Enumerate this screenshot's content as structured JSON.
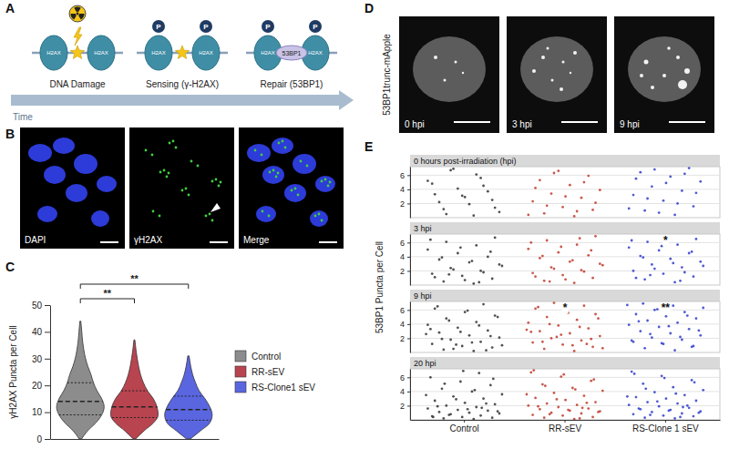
{
  "panel_labels": [
    "A",
    "B",
    "C",
    "D",
    "E"
  ],
  "diagram": {
    "stages": [
      "DNA Damage",
      "Sensing (γ-H2AX)",
      "Repair (53BP1)"
    ],
    "histone": "H2AX",
    "phospho": "P",
    "repair_protein": "53BP1",
    "time_label": "Time"
  },
  "micrographs_B": {
    "channels": [
      "DAPI",
      "γH2AX",
      "Merge"
    ]
  },
  "micrographs_D": {
    "channel_label": "53BP1trunc-mApple",
    "timepoints": [
      "0 hpi",
      "3 hpi",
      "9 hpi"
    ]
  },
  "chart_data": [
    {
      "type": "violin",
      "y_label": "γH2AX Puncta per Cell",
      "ylim": [
        0,
        50
      ],
      "yticks": [
        0,
        10,
        20,
        30,
        40,
        50
      ],
      "tick_labels": "y",
      "legend": "right",
      "series": [
        {
          "name": "Control",
          "color": "#8c8c8c",
          "median": 14,
          "q1": 9,
          "q3": 21,
          "density_y": [
            0,
            3,
            6,
            9,
            12,
            15,
            18,
            21,
            24,
            27,
            30,
            33,
            36,
            40,
            44
          ],
          "density": [
            0.05,
            0.3,
            0.65,
            0.9,
            1.0,
            0.9,
            0.7,
            0.55,
            0.45,
            0.32,
            0.22,
            0.15,
            0.1,
            0.06,
            0.02
          ]
        },
        {
          "name": "RR-sEV",
          "color": "#b8444f",
          "median": 12,
          "q1": 8,
          "q3": 18,
          "density_y": [
            0,
            3,
            6,
            9,
            12,
            15,
            18,
            21,
            24,
            27,
            30,
            33,
            37
          ],
          "density": [
            0.05,
            0.4,
            0.8,
            1.0,
            0.95,
            0.8,
            0.55,
            0.38,
            0.26,
            0.18,
            0.12,
            0.07,
            0.02
          ]
        },
        {
          "name": "RS-Clone1 sEV",
          "color": "#5a66e0",
          "median": 11,
          "q1": 7,
          "q3": 16,
          "density_y": [
            0,
            3,
            6,
            9,
            12,
            15,
            18,
            21,
            24,
            27,
            31
          ],
          "density": [
            0.08,
            0.5,
            0.9,
            1.0,
            0.9,
            0.7,
            0.45,
            0.3,
            0.18,
            0.1,
            0.03
          ]
        }
      ],
      "comparisons": [
        {
          "from": 0,
          "to": 1,
          "label": "**"
        },
        {
          "from": 0,
          "to": 2,
          "label": "**"
        }
      ]
    },
    {
      "type": "strip",
      "y_label": "53BP1 Puncta per Cell",
      "categories": [
        "Control",
        "RR-sEV",
        "RS-Clone 1 sEV"
      ],
      "colors": [
        "#333333",
        "#c0392b",
        "#2f3dc9"
      ],
      "ylim": [
        0,
        7.2
      ],
      "yticks": [
        2,
        4,
        6
      ],
      "grid": true,
      "facets": [
        {
          "title": "0 hours post-irradiation (hpi)",
          "significance": [],
          "values": [
            [
              0.3,
              1.2,
              2.5,
              3.1,
              4.8,
              5.6,
              6.7,
              0.8,
              1.9,
              2.2,
              3.7,
              4.1,
              5.2,
              6.1,
              0.5,
              1.4,
              2.9,
              3.3,
              4.5,
              6.9
            ],
            [
              0.2,
              0.6,
              1.1,
              1.5,
              2.3,
              2.8,
              3.4,
              3.9,
              4.6,
              5.3,
              5.9,
              6.6,
              0.4,
              0.9,
              1.7,
              2.1,
              3.0,
              4.2,
              5.0,
              6.3
            ],
            [
              0.4,
              1.0,
              1.6,
              2.4,
              3.2,
              3.8,
              4.4,
              5.1,
              5.8,
              6.4,
              7.0,
              0.7,
              1.3,
              2.0,
              2.7,
              3.5,
              4.9,
              5.5,
              6.2,
              6.8
            ]
          ]
        },
        {
          "title": "3 hpi",
          "significance": [
            {
              "index": 2,
              "label": "*"
            }
          ],
          "values": [
            [
              0.2,
              0.5,
              0.9,
              1.3,
              1.6,
              2.0,
              2.4,
              2.9,
              3.2,
              3.6,
              4.0,
              4.5,
              5.0,
              5.6,
              6.1,
              6.7,
              0.7,
              1.1,
              1.8,
              2.2,
              2.7,
              3.4,
              3.9,
              4.7,
              5.3,
              6.4,
              0.4,
              1.5
            ],
            [
              0.3,
              0.6,
              1.0,
              1.4,
              1.7,
              2.1,
              2.5,
              3.0,
              3.3,
              3.8,
              4.2,
              4.6,
              5.1,
              5.7,
              6.3,
              6.9,
              0.8,
              1.2,
              1.9,
              2.3,
              2.8,
              3.5,
              4.1,
              4.9,
              5.4,
              6.0,
              6.6,
              0.5
            ],
            [
              0.4,
              0.8,
              1.2,
              1.6,
              2.0,
              2.5,
              2.9,
              3.3,
              3.7,
              4.1,
              4.5,
              4.9,
              5.3,
              5.7,
              6.1,
              6.5,
              6.9,
              1.0,
              1.8,
              2.3,
              2.7,
              3.1,
              3.9,
              4.7,
              5.5,
              6.3,
              0.6,
              1.4
            ]
          ]
        },
        {
          "title": "9 hpi",
          "significance": [
            {
              "index": 1,
              "label": "*"
            },
            {
              "index": 2,
              "label": "**"
            }
          ],
          "values": [
            [
              0.2,
              0.4,
              0.7,
              0.9,
              1.2,
              1.5,
              1.8,
              2.1,
              2.4,
              2.8,
              3.1,
              3.5,
              3.9,
              4.3,
              4.8,
              5.2,
              5.7,
              6.2,
              6.8,
              0.5,
              1.0,
              1.4,
              1.9,
              2.3,
              2.9,
              3.3,
              3.8,
              4.5,
              5.0,
              5.9,
              6.5,
              0.3,
              1.1,
              2.6
            ],
            [
              0.2,
              0.5,
              0.8,
              1.1,
              1.4,
              1.7,
              2.0,
              2.3,
              2.7,
              3.0,
              3.4,
              3.8,
              4.2,
              4.6,
              5.0,
              5.4,
              5.8,
              6.2,
              6.6,
              7.0,
              0.6,
              1.0,
              1.5,
              1.9,
              2.5,
              2.9,
              3.6,
              4.0,
              4.8,
              5.6,
              6.4,
              1.2,
              2.2,
              3.2
            ],
            [
              0.3,
              0.6,
              0.9,
              1.2,
              1.5,
              1.8,
              2.1,
              2.4,
              2.7,
              3.0,
              3.3,
              3.6,
              3.9,
              4.2,
              4.5,
              4.8,
              5.1,
              5.4,
              5.7,
              6.0,
              6.3,
              6.6,
              6.9,
              0.8,
              1.3,
              1.7,
              2.2,
              2.6,
              3.1,
              3.7,
              4.4,
              5.2,
              6.1,
              6.7
            ]
          ]
        },
        {
          "title": "20 hpi",
          "significance": [],
          "values": [
            [
              0.1,
              0.2,
              0.3,
              0.4,
              0.5,
              0.6,
              0.8,
              0.9,
              1.0,
              1.1,
              1.3,
              1.4,
              1.6,
              1.8,
              2.0,
              2.2,
              2.4,
              2.7,
              3.0,
              3.3,
              3.6,
              4.0,
              4.4,
              4.9,
              5.4,
              6.0,
              6.6,
              0.7,
              1.2,
              1.5,
              1.9,
              2.3,
              2.9,
              3.5,
              4.2,
              5.1,
              5.8,
              6.9,
              0.4,
              1.7
            ],
            [
              0.1,
              0.3,
              0.4,
              0.6,
              0.7,
              0.9,
              1.0,
              1.2,
              1.3,
              1.5,
              1.6,
              1.8,
              2.0,
              2.1,
              2.3,
              2.5,
              2.8,
              3.1,
              3.4,
              3.8,
              4.1,
              4.5,
              5.0,
              5.5,
              6.1,
              6.7,
              0.2,
              0.8,
              1.1,
              1.4,
              1.9,
              2.4,
              2.9,
              3.6,
              4.3,
              4.8,
              5.7,
              6.4,
              7.0,
              1.7
            ],
            [
              0.2,
              0.3,
              0.5,
              0.6,
              0.8,
              0.9,
              1.1,
              1.2,
              1.4,
              1.5,
              1.7,
              1.9,
              2.1,
              2.3,
              2.5,
              2.7,
              3.0,
              3.2,
              3.5,
              3.9,
              4.2,
              4.6,
              5.1,
              5.6,
              6.2,
              6.8,
              0.4,
              0.7,
              1.0,
              1.3,
              1.6,
              2.0,
              2.6,
              3.3,
              3.7,
              4.4,
              5.3,
              5.9,
              6.5,
              1.8
            ]
          ]
        }
      ]
    }
  ]
}
